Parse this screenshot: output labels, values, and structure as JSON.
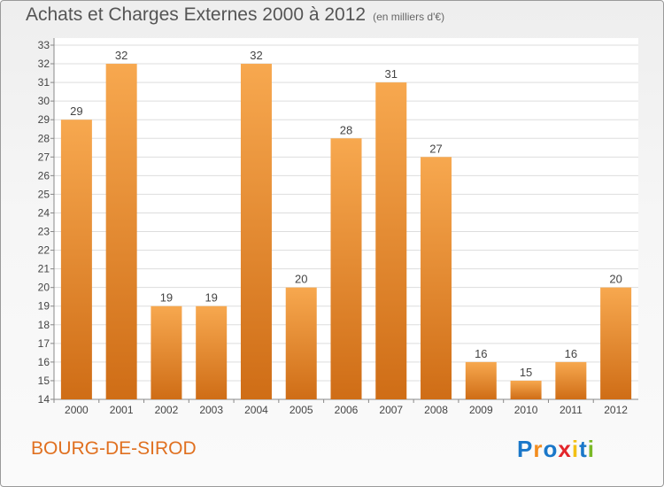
{
  "title": "Achats et Charges Externes 2000 à 2012",
  "unit": "(en milliers d'€)",
  "place": "BOURG-DE-SIROD",
  "logo": {
    "text": "Proxiti",
    "letters": [
      {
        "ch": "P",
        "color": "#1a77c9"
      },
      {
        "ch": "r",
        "color": "#f28c1e"
      },
      {
        "ch": "o",
        "color": "#1a77c9"
      },
      {
        "ch": "x",
        "color": "#e3262b"
      },
      {
        "ch": "i",
        "color": "#f2c014"
      },
      {
        "ch": "t",
        "color": "#1a77c9"
      },
      {
        "ch": "i",
        "color": "#7ab927"
      }
    ]
  },
  "colors": {
    "bar_light": "#f7a84f",
    "bar_dark": "#cf6d16",
    "grid": "#dddddd",
    "axis_text": "#444444"
  },
  "chart_data": {
    "type": "bar",
    "categories": [
      "2000",
      "2001",
      "2002",
      "2003",
      "2004",
      "2005",
      "2006",
      "2007",
      "2008",
      "2009",
      "2010",
      "2011",
      "2012"
    ],
    "values": [
      29,
      32,
      19,
      19,
      32,
      20,
      28,
      31,
      27,
      16,
      15,
      16,
      20
    ],
    "ylim": [
      14,
      33
    ],
    "yticks": [
      14,
      15,
      16,
      17,
      18,
      19,
      20,
      21,
      22,
      23,
      24,
      25,
      26,
      27,
      28,
      29,
      30,
      31,
      32,
      33
    ],
    "grid": true,
    "legend": "none"
  }
}
